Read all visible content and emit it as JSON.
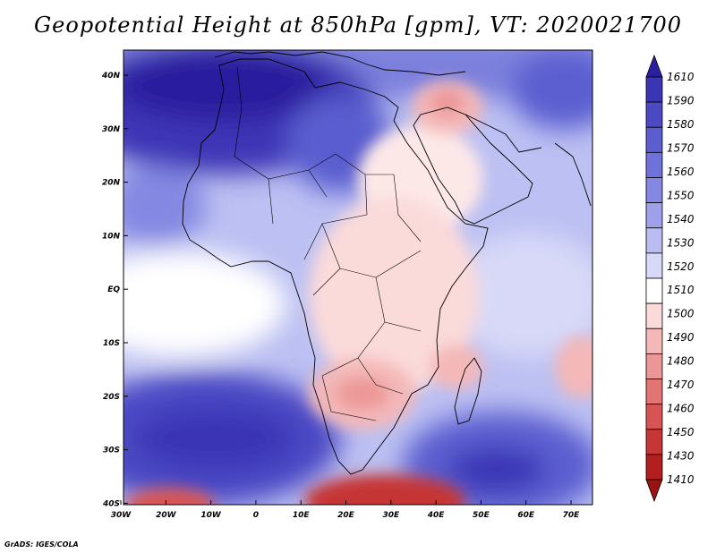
{
  "title": "Geopotential Height at 850hPa [gpm], VT: 2020021700",
  "credit": "GrADS: IGES/COLA",
  "map": {
    "lon_labels": [
      "30W",
      "20W",
      "10W",
      "0",
      "10E",
      "20E",
      "30E",
      "40E",
      "50E",
      "60E",
      "70E"
    ],
    "lat_labels": [
      "40N",
      "30N",
      "20N",
      "10N",
      "EQ",
      "10S",
      "20S",
      "30S",
      "40S"
    ],
    "lon_range": [
      -30,
      75
    ],
    "lat_range": [
      -40,
      44
    ]
  },
  "colorbar": {
    "levels": [
      "1610",
      "1590",
      "1580",
      "1570",
      "1560",
      "1550",
      "1540",
      "1530",
      "1520",
      "1510",
      "1500",
      "1490",
      "1480",
      "1470",
      "1460",
      "1450",
      "1430",
      "1410"
    ],
    "colors": [
      "#2a1f9e",
      "#3a35b5",
      "#4b4ac4",
      "#5c5ed0",
      "#6e72da",
      "#8488e2",
      "#9ea1ea",
      "#bbbdf2",
      "#d8d9f8",
      "#ffffff",
      "#fbdada",
      "#f4b8b8",
      "#ec9797",
      "#e37474",
      "#d75454",
      "#c63636",
      "#b31f1f",
      "#9a1212"
    ]
  }
}
